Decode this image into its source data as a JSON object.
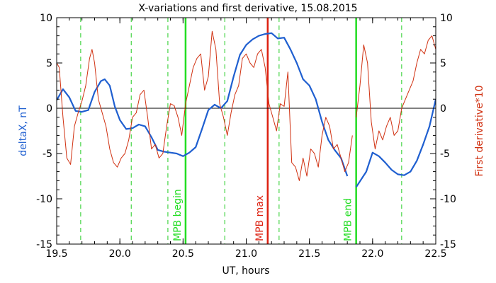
{
  "chart_data": {
    "type": "line",
    "title": "X-variations and first derivative, 15.08.2015",
    "xlabel": "UT, hours",
    "ylabel_left": "deltaX, nT",
    "ylabel_right": "First derivative*10",
    "xlim": [
      19.5,
      22.5
    ],
    "ylim": [
      -15,
      10
    ],
    "ylim_right": [
      -15,
      10
    ],
    "x_ticks": [
      19.5,
      20.0,
      20.5,
      21.0,
      21.5,
      22.0,
      22.5
    ],
    "x_tick_labels": [
      "19.5",
      "20.0",
      "20.5",
      "21.0",
      "21.5",
      "22.0",
      "22.5"
    ],
    "y_ticks": [
      -15,
      -10,
      -5,
      0,
      5,
      10
    ],
    "y_tick_labels": [
      "-15",
      "-10",
      "-5",
      "0",
      "5",
      "10"
    ],
    "colors": {
      "deltaX": "#1f5fd0",
      "derivative": "#d03010",
      "mpb_boundary": "#22dd22",
      "mpb_max": "#dd2010",
      "dashed": "#22cc22",
      "zero_line": "#000000"
    },
    "zero_line": 0,
    "vertical_markers": [
      {
        "x": 20.52,
        "label": "MPB begin",
        "color": "#22dd22",
        "style": "solid"
      },
      {
        "x": 21.17,
        "label": "MPB max",
        "color": "#dd2010",
        "style": "solid"
      },
      {
        "x": 21.87,
        "label": "MPB end",
        "color": "#22dd22",
        "style": "solid"
      }
    ],
    "dashed_lines": [
      19.69,
      20.09,
      20.38,
      20.83,
      21.26,
      22.23
    ],
    "series": [
      {
        "key": "deltaX",
        "axis": "left",
        "segments": [
          {
            "x": [
              19.5,
              19.55,
              19.6,
              19.65,
              19.7,
              19.75,
              19.8,
              19.85,
              19.88,
              19.92,
              19.96,
              20.0,
              20.05,
              20.1,
              20.15,
              20.2,
              20.25,
              20.3,
              20.35,
              20.4,
              20.45,
              20.5,
              20.55,
              20.6,
              20.65,
              20.7,
              20.75,
              20.8,
              20.85,
              20.9,
              20.95,
              21.0,
              21.05,
              21.1,
              21.15,
              21.2,
              21.25,
              21.3,
              21.35,
              21.4,
              21.45,
              21.5,
              21.55,
              21.6,
              21.65,
              21.7,
              21.75,
              21.8
            ],
            "y": [
              0.9,
              2.1,
              1.2,
              -0.3,
              -0.4,
              -0.2,
              1.8,
              3.0,
              3.2,
              2.5,
              0.2,
              -1.3,
              -2.3,
              -2.2,
              -1.8,
              -2.0,
              -3.2,
              -4.6,
              -4.8,
              -4.9,
              -5.0,
              -5.3,
              -4.9,
              -4.3,
              -2.3,
              -0.2,
              0.4,
              0.0,
              0.8,
              3.5,
              5.9,
              7.0,
              7.6,
              8.0,
              8.2,
              8.3,
              7.7,
              7.8,
              6.5,
              5.0,
              3.2,
              2.5,
              1.0,
              -1.5,
              -3.5,
              -4.6,
              -5.5,
              -7.5
            ]
          },
          {
            "x": [
              21.87,
              21.95,
              22.0,
              22.05,
              22.1,
              22.15,
              22.2,
              22.25,
              22.3,
              22.35,
              22.4,
              22.45,
              22.5
            ],
            "y": [
              -8.7,
              -7.0,
              -4.9,
              -5.3,
              -6.0,
              -6.8,
              -7.3,
              -7.4,
              -7.0,
              -5.8,
              -4.0,
              -2.0,
              1.0
            ]
          }
        ]
      },
      {
        "key": "derivative",
        "axis": "right",
        "segments": [
          {
            "x": [
              19.5,
              19.52,
              19.55,
              19.58,
              19.61,
              19.64,
              19.67,
              19.7,
              19.73,
              19.76,
              19.78,
              19.8,
              19.83,
              19.86,
              19.89,
              19.92,
              19.95,
              19.98,
              20.01,
              20.04,
              20.07,
              20.1,
              20.13,
              20.16,
              20.19,
              20.22,
              20.25,
              20.28,
              20.31,
              20.34,
              20.37,
              20.4,
              20.43,
              20.46,
              20.49,
              20.52,
              20.55,
              20.58,
              20.61,
              20.64,
              20.67,
              20.7,
              20.73,
              20.76,
              20.79,
              20.82,
              20.85,
              20.88,
              20.91,
              20.94,
              20.97,
              21.0,
              21.03,
              21.06,
              21.09,
              21.12,
              21.15,
              21.18,
              21.21,
              21.24,
              21.27,
              21.3,
              21.33,
              21.36,
              21.39,
              21.42,
              21.45,
              21.48,
              21.51,
              21.54,
              21.57,
              21.6,
              21.63,
              21.66,
              21.69,
              21.72,
              21.75,
              21.78,
              21.81,
              21.84
            ],
            "y": [
              5.0,
              4.5,
              -1.0,
              -5.5,
              -6.2,
              -2.0,
              -0.5,
              0.8,
              2.5,
              5.5,
              6.5,
              5.0,
              1.0,
              -0.5,
              -2.0,
              -4.5,
              -6.0,
              -6.5,
              -5.5,
              -5.0,
              -3.5,
              -1.0,
              -0.5,
              1.5,
              2.0,
              -1.0,
              -4.5,
              -4.0,
              -5.5,
              -5.0,
              -2.0,
              0.5,
              0.3,
              -1.0,
              -3.0,
              0.5,
              2.5,
              4.5,
              5.5,
              6.0,
              2.0,
              3.5,
              8.5,
              6.5,
              0.5,
              -1.0,
              -3.0,
              -0.5,
              1.5,
              2.5,
              5.5,
              6.0,
              5.0,
              4.5,
              6.0,
              6.5,
              4.5,
              0.5,
              -1.0,
              -2.5,
              0.5,
              0.2,
              4.0,
              -6.0,
              -6.5,
              -8.0,
              -5.5,
              -7.5,
              -4.5,
              -5.0,
              -6.5,
              -3.0,
              -1.0,
              -2.0,
              -4.5,
              -4.0,
              -5.5,
              -7.0,
              -6.0,
              -3.0
            ]
          },
          {
            "x": [
              21.87,
              21.9,
              21.93,
              21.96,
              21.99,
              22.02,
              22.05,
              22.08,
              22.11,
              22.14,
              22.17,
              22.2,
              22.23,
              22.26,
              22.29,
              22.32,
              22.35,
              22.38,
              22.41,
              22.44,
              22.47,
              22.5
            ],
            "y": [
              -1.0,
              2.5,
              7.0,
              5.0,
              -1.5,
              -4.5,
              -2.5,
              -3.5,
              -2.0,
              -1.0,
              -3.0,
              -2.5,
              0.0,
              1.0,
              2.0,
              3.0,
              5.0,
              6.5,
              6.0,
              7.5,
              8.0,
              6.5
            ]
          }
        ]
      }
    ]
  }
}
